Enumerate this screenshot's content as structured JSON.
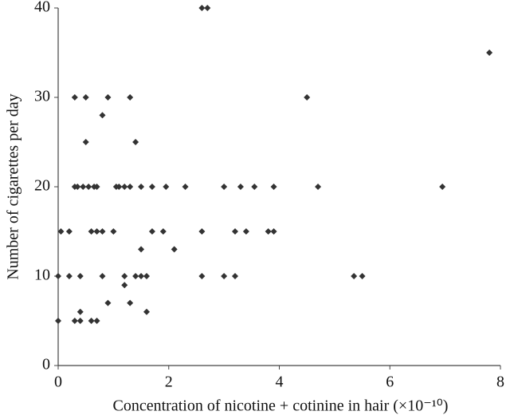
{
  "chart_data": {
    "type": "scatter",
    "xlabel": "Concentration of nicotine + cotinine in hair (×10⁻¹⁰)",
    "ylabel": "Number of cigarettes per day",
    "color": "#333333",
    "x": [
      0,
      0,
      0.3,
      0.35,
      0.45,
      0.55,
      0.65,
      0.7,
      1.05,
      1.1,
      1.2,
      1.3,
      1.5,
      1.7,
      1.95,
      2.3,
      3.0,
      3.3,
      3.55,
      3.9,
      4.7,
      6.95,
      0.3,
      0.5,
      0.9,
      1.3,
      4.5,
      2.6,
      2.7,
      7.8,
      0.8,
      0.5,
      1.4,
      0.05,
      0.2,
      0.6,
      0.7,
      0.8,
      1.0,
      1.7,
      1.9,
      2.6,
      3.2,
      3.4,
      3.8,
      3.9,
      1.5,
      2.1,
      0.2,
      0.4,
      0.8,
      1.2,
      1.4,
      1.5,
      1.6,
      2.6,
      3.0,
      3.2,
      5.35,
      5.5,
      1.2,
      0.9,
      1.3,
      0.4,
      1.6,
      0.3,
      0.4,
      0.6,
      0.7
    ],
    "values": [
      10,
      5,
      20,
      20,
      20,
      20,
      20,
      20,
      20,
      20,
      20,
      20,
      20,
      20,
      20,
      20,
      20,
      20,
      20,
      20,
      20,
      20,
      30,
      30,
      30,
      30,
      30,
      40,
      40,
      35,
      28,
      25,
      25,
      15,
      15,
      15,
      15,
      15,
      15,
      15,
      15,
      15,
      15,
      15,
      15,
      15,
      13,
      13,
      10,
      10,
      10,
      10,
      10,
      10,
      10,
      10,
      10,
      10,
      10,
      10,
      9,
      7,
      7,
      6,
      6,
      5,
      5,
      5,
      5
    ],
    "xlim": [
      0,
      8
    ],
    "xticks": [
      0,
      2,
      4,
      6,
      8
    ],
    "ylim": [
      0,
      40
    ],
    "yticks": [
      0,
      10,
      20,
      30,
      40
    ]
  }
}
